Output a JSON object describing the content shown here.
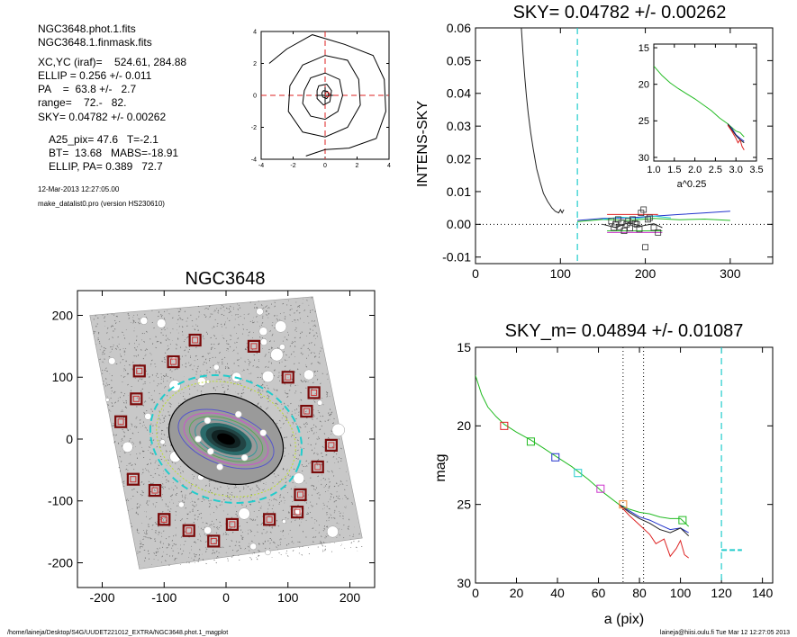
{
  "info": {
    "file1": "NGC3648.phot.1.fits",
    "file2": "NGC3648.1.finmask.fits",
    "xcyc": "XC,YC (iraf)=    524.61, 284.88",
    "ellip": "ELLIP = 0.256 +/- 0.011",
    "pa": "PA    =  63.8 +/-   2.7",
    "range": "range=    72.-   82.",
    "sky": "SKY= 0.04782 +/- 0.00262",
    "a25": "A25_pix= 47.6   T=-2.1",
    "bt": "BT=  13.68   MABS=-18.91",
    "ellip_pa": "ELLIP, PA= 0.389   72.7",
    "date": "12-Mar-2013 12:27:05.00",
    "program": "make_datalist0.pro (version HS230610)"
  },
  "footer": {
    "left": "/home/laineja/Desktop/S4G/UUDET221012_EXTRA/NGC3648.phot.1_magplot",
    "right": "laineja@hiisi.oulu.fi  Tue Mar 12 12:27:05 2013"
  },
  "colors": {
    "red": "#dd2222",
    "green": "#22bb22",
    "blue": "#2233cc",
    "cyan": "#22cccc",
    "magenta": "#cc33cc",
    "orange": "#ee8833",
    "darkred": "#7a0a0a",
    "gray": "#777777"
  },
  "chart_data": [
    {
      "id": "center-contours",
      "type": "contour",
      "xlim": [
        -4,
        4
      ],
      "ylim": [
        -4,
        4
      ],
      "xticks": [
        -4,
        -2,
        0,
        2,
        4
      ],
      "yticks": [
        -4,
        -2,
        0,
        2,
        4
      ],
      "contours": [
        [
          [
            -0.1,
            0.3
          ],
          [
            0.15,
            0.25
          ],
          [
            0.25,
            0.0
          ],
          [
            0.1,
            -0.2
          ],
          [
            -0.15,
            -0.1
          ],
          [
            -0.2,
            0.15
          ]
        ],
        [
          [
            -0.4,
            0.6
          ],
          [
            0.1,
            0.7
          ],
          [
            0.4,
            0.3
          ],
          [
            0.3,
            -0.4
          ],
          [
            -0.1,
            -0.6
          ],
          [
            -0.5,
            -0.2
          ],
          [
            -0.5,
            0.3
          ]
        ],
        [
          [
            -1.3,
            0.3
          ],
          [
            -0.9,
            1.1
          ],
          [
            0,
            1.4
          ],
          [
            0.9,
            1.0
          ],
          [
            1.1,
            0
          ],
          [
            0.8,
            -1.0
          ],
          [
            0,
            -1.5
          ],
          [
            -0.9,
            -1.3
          ],
          [
            -1.4,
            -0.5
          ]
        ],
        [
          [
            -2.2,
            0.6
          ],
          [
            -1.4,
            1.9
          ],
          [
            0,
            2.5
          ],
          [
            1.4,
            2.2
          ],
          [
            2.1,
            1
          ],
          [
            2.2,
            -0.6
          ],
          [
            1.4,
            -2.0
          ],
          [
            0,
            -2.6
          ],
          [
            -1.4,
            -2.3
          ],
          [
            -2.3,
            -1.0
          ]
        ],
        [
          [
            -3.5,
            2.0
          ],
          [
            -2.4,
            2.9
          ],
          [
            -0.8,
            3.8
          ],
          [
            1.2,
            3.2
          ],
          [
            3.0,
            2.5
          ],
          [
            3.7,
            1.0
          ],
          [
            3.8,
            -1.0
          ],
          [
            3.2,
            -2.7
          ],
          [
            1.5,
            -3.3
          ],
          [
            0,
            -3.4
          ],
          [
            -1.2,
            -3.8
          ]
        ]
      ]
    },
    {
      "id": "sky-intens",
      "type": "line",
      "title": "SKY= 0.04782 +/- 0.00262",
      "ylabel": "INTENS-SKY",
      "xlim": [
        0,
        350
      ],
      "ylim": [
        -0.012,
        0.06
      ],
      "xticks": [
        0,
        100,
        200,
        300
      ],
      "yticks": [
        -0.01,
        0.0,
        0.01,
        0.02,
        0.03,
        0.04,
        0.05,
        0.06
      ],
      "ytick_labels": [
        "-0.01",
        "0.00",
        "0.01",
        "0.02",
        "0.03",
        "0.04",
        "0.05",
        "0.06"
      ],
      "vline_cyan": 120,
      "series": [
        {
          "color": "#222222",
          "x": [
            54,
            56,
            58,
            60,
            62,
            65,
            68,
            72,
            76,
            80,
            85,
            90,
            94,
            98,
            100,
            102,
            104
          ],
          "y": [
            0.06,
            0.052,
            0.045,
            0.039,
            0.034,
            0.028,
            0.023,
            0.017,
            0.013,
            0.0095,
            0.007,
            0.005,
            0.004,
            0.0035,
            0.0045,
            0.0035,
            0.0045
          ]
        },
        {
          "color": "#2233cc",
          "x": [
            120,
            150,
            180,
            210,
            240,
            270,
            300
          ],
          "y": [
            0.0012,
            0.0018,
            0.002,
            0.0025,
            0.003,
            0.0035,
            0.004
          ]
        },
        {
          "color": "#22bb22",
          "x": [
            120,
            150,
            180,
            210,
            240,
            270,
            300
          ],
          "y": [
            0.0008,
            0.0015,
            0.0012,
            0.0018,
            0.0014,
            0.0016,
            0.0012
          ]
        },
        {
          "color": "#dd2222",
          "x": [
            155,
            215
          ],
          "y": [
            0.003,
            0.003
          ]
        },
        {
          "color": "#22cccc",
          "x": [
            150,
            170,
            190,
            210,
            230
          ],
          "y": [
            0.0015,
            0.0022,
            0.0018,
            0.0025,
            0.002
          ]
        },
        {
          "color": "#cc33cc",
          "x": [
            155,
            220
          ],
          "y": [
            -0.0025,
            -0.0025
          ]
        },
        {
          "color": "#22bb22",
          "x": [
            155,
            220
          ],
          "y": [
            -0.002,
            -0.002
          ]
        },
        {
          "color": "#222222",
          "x": [
            150,
            165,
            180,
            195,
            210,
            220
          ],
          "y": [
            0.0,
            -0.001,
            0.0005,
            -0.0005,
            0.0002,
            -0.001
          ]
        }
      ],
      "squares": {
        "x": [
          160,
          163,
          165,
          168,
          170,
          172,
          175,
          178,
          180,
          182,
          185,
          188,
          190,
          193,
          195,
          198,
          200,
          203,
          205,
          210,
          215
        ],
        "y": [
          0.001,
          -0.001,
          0.0,
          0.0015,
          -0.0008,
          0.0005,
          -0.002,
          0.0,
          0.001,
          -0.0012,
          0.0015,
          0.0003,
          0.0,
          -0.0015,
          0.0035,
          0.0045,
          -0.007,
          0.0015,
          0.002,
          -0.001,
          -0.0025
        ]
      }
    },
    {
      "id": "inset-profile",
      "type": "line",
      "xlabel": "a^0.25",
      "xlim": [
        1.0,
        3.5
      ],
      "ylim": [
        14.5,
        30.5
      ],
      "yreverse": true,
      "xticks": [
        1.0,
        1.5,
        2.0,
        2.5,
        3.0,
        3.5
      ],
      "xtick_labels": [
        "1.0",
        "1.5",
        "2.0",
        "2.5",
        "3.0",
        "3.5"
      ],
      "yticks": [
        15,
        20,
        25,
        30
      ],
      "series": [
        {
          "color": "#22bb22",
          "x": [
            1.0,
            1.2,
            1.4,
            1.6,
            1.8,
            2.0,
            2.2,
            2.4,
            2.6,
            2.8,
            3.0,
            3.1,
            3.2
          ],
          "y": [
            17.5,
            18.8,
            19.8,
            20.6,
            21.3,
            22.0,
            22.8,
            23.6,
            24.6,
            25.4,
            26.4,
            26.6,
            27.2
          ]
        },
        {
          "color": "#2233cc",
          "x": [
            2.8,
            2.9,
            3.0,
            3.1,
            3.2
          ],
          "y": [
            25.5,
            26.0,
            26.9,
            27.4,
            27.8
          ]
        },
        {
          "color": "#222222",
          "x": [
            2.8,
            2.9,
            3.0,
            3.1,
            3.2
          ],
          "y": [
            25.4,
            26.2,
            27.0,
            27.6,
            28.0
          ]
        },
        {
          "color": "#dd2222",
          "x": [
            2.8,
            2.9,
            3.0,
            3.05,
            3.1,
            3.15,
            3.2
          ],
          "y": [
            25.6,
            26.4,
            27.4,
            28.0,
            27.6,
            28.5,
            29.0
          ]
        }
      ]
    },
    {
      "id": "galaxy-map",
      "type": "scatter",
      "title": "NGC3648",
      "xlim": [
        -240,
        240
      ],
      "ylim": [
        -240,
        240
      ],
      "xticks": [
        -200,
        -100,
        0,
        100,
        200
      ],
      "yticks": [
        -200,
        -100,
        0,
        100,
        200
      ],
      "ellipse_inner": {
        "a": 95,
        "b": 70,
        "pa": 20
      },
      "ellipse_outer": {
        "a": 125,
        "b": 100,
        "pa": 20
      },
      "boxes": [
        [
          -50,
          160
        ],
        [
          45,
          150
        ],
        [
          -85,
          125
        ],
        [
          -140,
          110
        ],
        [
          100,
          100
        ],
        [
          -145,
          65
        ],
        [
          142,
          75
        ],
        [
          130,
          45
        ],
        [
          -170,
          28
        ],
        [
          170,
          -10
        ],
        [
          -150,
          -65
        ],
        [
          148,
          -45
        ],
        [
          -115,
          -83
        ],
        [
          120,
          -90
        ],
        [
          -100,
          -130
        ],
        [
          115,
          -118
        ],
        [
          -60,
          -148
        ],
        [
          70,
          -130
        ],
        [
          -20,
          -165
        ],
        [
          10,
          -138
        ],
        [
          -100,
          -130
        ]
      ]
    },
    {
      "id": "mag-profile",
      "type": "line",
      "title": "SKY_m=  0.04894 +/- 0.01087",
      "xlabel": "a (pix)",
      "ylabel": "mag",
      "xlim": [
        0,
        145
      ],
      "ylim": [
        15,
        30
      ],
      "yreverse": true,
      "xticks": [
        0,
        20,
        40,
        60,
        80,
        100,
        120,
        140
      ],
      "yticks": [
        15,
        20,
        25,
        30
      ],
      "vlines_dotted": [
        72,
        82
      ],
      "vline_cyan": 120,
      "sky_dash": {
        "x": [
          120,
          130
        ],
        "y": 27.9
      },
      "series": [
        {
          "color": "#22bb22",
          "x": [
            0,
            3,
            6,
            10,
            14,
            20,
            27,
            33,
            40,
            47,
            55,
            62,
            70,
            75,
            80,
            85,
            90,
            95,
            100,
            104
          ],
          "y": [
            16.8,
            18.0,
            18.8,
            19.4,
            19.9,
            20.4,
            20.9,
            21.4,
            22.0,
            22.6,
            23.4,
            24.2,
            25.0,
            25.3,
            25.5,
            25.6,
            25.8,
            25.9,
            25.9,
            26.4
          ]
        },
        {
          "color": "#2233cc",
          "x": [
            70,
            75,
            80,
            85,
            90,
            95,
            100,
            104
          ],
          "y": [
            25.0,
            25.4,
            25.8,
            26.0,
            26.3,
            26.6,
            26.5,
            26.8
          ]
        },
        {
          "color": "#222222",
          "x": [
            70,
            75,
            80,
            85,
            90,
            95,
            100,
            104
          ],
          "y": [
            25.0,
            25.5,
            25.9,
            26.2,
            26.6,
            26.8,
            26.5,
            27.0
          ]
        },
        {
          "color": "#dd2222",
          "x": [
            70,
            75,
            80,
            85,
            88,
            92,
            95,
            98,
            100,
            102,
            104
          ],
          "y": [
            25.0,
            25.7,
            26.3,
            26.9,
            27.5,
            27.2,
            28.3,
            27.8,
            27.3,
            28.2,
            28.4
          ]
        }
      ],
      "markers": [
        {
          "x": 14,
          "y": 20.0,
          "color": "#dd2222"
        },
        {
          "x": 27,
          "y": 21.0,
          "color": "#22bb22"
        },
        {
          "x": 39,
          "y": 22.0,
          "color": "#2233cc"
        },
        {
          "x": 50,
          "y": 23.0,
          "color": "#22cccc"
        },
        {
          "x": 61,
          "y": 24.0,
          "color": "#cc33cc"
        },
        {
          "x": 72,
          "y": 25.0,
          "color": "#ee8833"
        },
        {
          "x": 101,
          "y": 26.0,
          "color": "#22bb22"
        }
      ]
    }
  ]
}
